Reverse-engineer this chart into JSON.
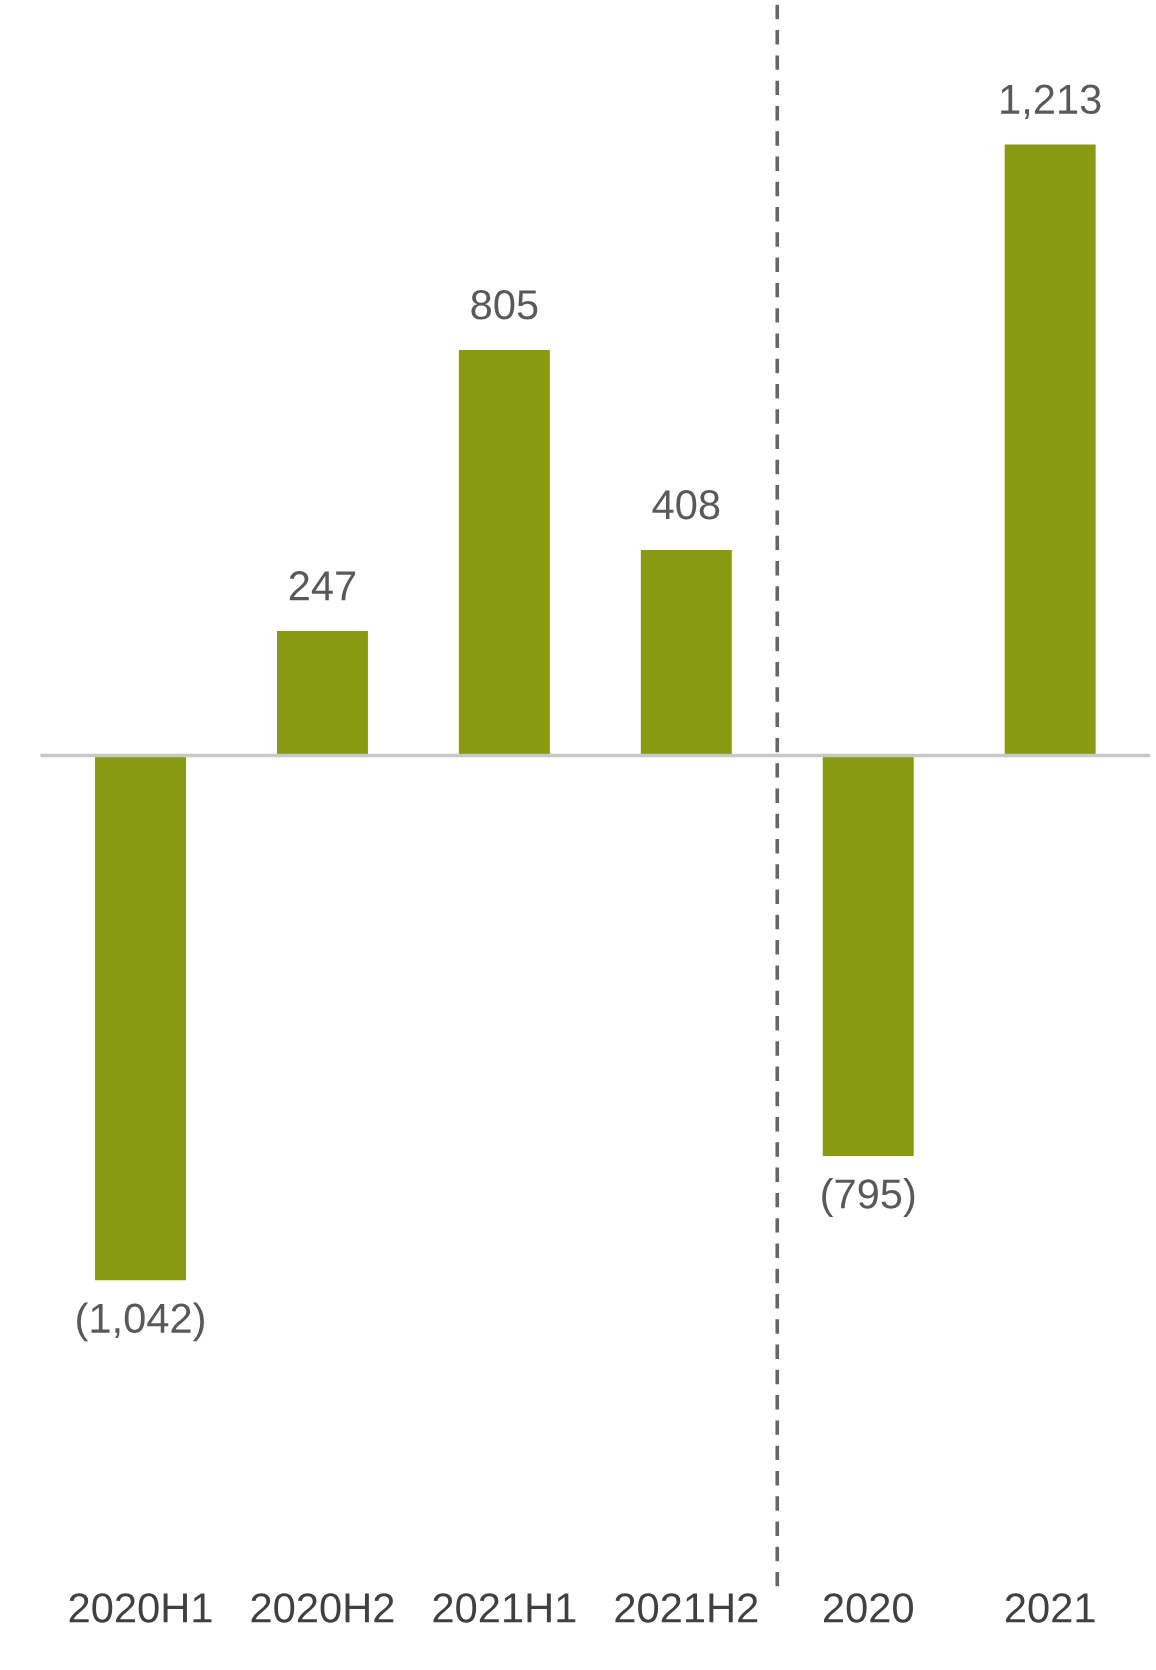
{
  "chart_data": {
    "type": "bar",
    "categories": [
      "2020H1",
      "2020H2",
      "2021H1",
      "2021H2",
      "2020",
      "2021"
    ],
    "values": [
      -1042,
      247,
      805,
      408,
      -795,
      1213
    ],
    "value_labels": [
      "(1,042)",
      "247",
      "805",
      "408",
      "(795)",
      "1,213"
    ],
    "color": "#879a12",
    "ylim": [
      -1650,
      1500
    ],
    "tick_labels": "x",
    "grid": false,
    "legend": false
  }
}
